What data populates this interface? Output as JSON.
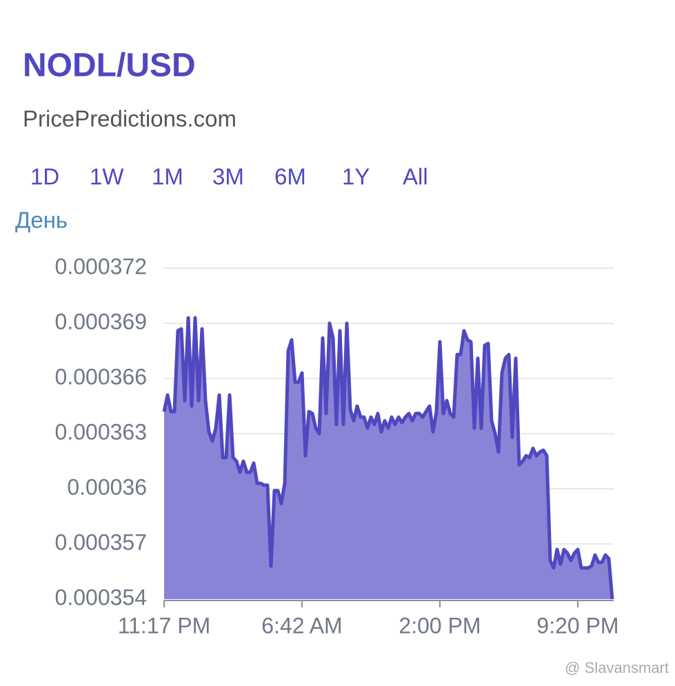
{
  "header": {
    "title": "NODL/USD",
    "subtitle": "PricePredictions.com",
    "ranges": [
      "1D",
      "1W",
      "1M",
      "3M",
      "6M",
      "1Y",
      "All"
    ],
    "period": "День"
  },
  "chart_data": {
    "type": "area",
    "color": "#4f48c0",
    "fill": "#8a84d6",
    "grid": true,
    "categories": [
      "11:17 PM",
      null,
      null,
      null,
      null,
      null,
      null,
      null,
      null,
      null,
      null,
      null,
      null,
      null,
      null,
      null,
      null,
      null,
      null,
      null,
      null,
      null,
      null,
      null,
      null,
      null,
      null,
      null,
      null,
      null,
      null,
      null,
      null,
      null,
      null,
      null,
      null,
      null,
      null,
      null,
      "6:42 AM",
      null,
      null,
      null,
      null,
      null,
      null,
      null,
      null,
      null,
      null,
      null,
      null,
      null,
      null,
      null,
      null,
      null,
      null,
      null,
      null,
      null,
      null,
      null,
      null,
      null,
      null,
      null,
      null,
      null,
      null,
      null,
      null,
      null,
      null,
      null,
      null,
      null,
      null,
      null,
      "2:00 PM",
      null,
      null,
      null,
      null,
      null,
      null,
      null,
      null,
      null,
      null,
      null,
      null,
      null,
      null,
      null,
      null,
      null,
      null,
      null,
      null,
      null,
      null,
      null,
      null,
      null,
      null,
      null,
      null,
      null,
      null,
      null,
      null,
      null,
      null,
      null,
      null,
      null,
      null,
      null,
      "9:20 PM",
      null,
      null,
      null,
      null,
      null,
      null,
      null,
      null,
      null,
      null
    ],
    "values": [
      0.0003642,
      0.0003651,
      0.0003642,
      0.0003642,
      0.0003686,
      0.0003687,
      0.0003648,
      0.0003693,
      0.0003645,
      0.0003693,
      0.0003648,
      0.0003687,
      0.0003648,
      0.0003631,
      0.0003626,
      0.0003633,
      0.0003651,
      0.0003617,
      0.0003617,
      0.0003651,
      0.0003617,
      0.0003615,
      0.0003609,
      0.0003615,
      0.0003609,
      0.0003609,
      0.0003614,
      0.0003603,
      0.0003603,
      0.0003602,
      0.0003602,
      0.0003558,
      0.0003599,
      0.0003599,
      0.0003592,
      0.0003603,
      0.0003675,
      0.0003681,
      0.0003658,
      0.0003658,
      0.0003663,
      0.0003618,
      0.0003642,
      0.0003641,
      0.0003633,
      0.000363,
      0.0003682,
      0.0003641,
      0.000369,
      0.0003682,
      0.0003635,
      0.0003686,
      0.0003635,
      0.000369,
      0.0003643,
      0.0003637,
      0.0003645,
      0.0003639,
      0.0003639,
      0.0003633,
      0.0003639,
      0.0003635,
      0.0003641,
      0.0003631,
      0.0003637,
      0.0003633,
      0.0003639,
      0.0003635,
      0.0003639,
      0.0003636,
      0.0003639,
      0.0003641,
      0.0003637,
      0.0003641,
      0.0003641,
      0.0003639,
      0.0003642,
      0.0003645,
      0.0003631,
      0.0003642,
      0.000368,
      0.0003641,
      0.0003648,
      0.0003641,
      0.0003639,
      0.0003673,
      0.0003673,
      0.0003686,
      0.0003681,
      0.000368,
      0.0003633,
      0.0003671,
      0.0003633,
      0.0003678,
      0.0003679,
      0.0003637,
      0.000363,
      0.000362,
      0.0003663,
      0.0003671,
      0.0003673,
      0.0003628,
      0.0003671,
      0.0003613,
      0.0003615,
      0.0003618,
      0.0003617,
      0.0003622,
      0.0003618,
      0.000362,
      0.0003621,
      0.0003618,
      0.0003561,
      0.0003557,
      0.0003567,
      0.0003559,
      0.0003567,
      0.0003565,
      0.0003561,
      0.0003565,
      0.0003567,
      0.0003557,
      0.0003557,
      0.0003557,
      0.0003558,
      0.0003564,
      0.000356,
      0.000356,
      0.0003564,
      0.0003562,
      0.000354
    ],
    "ylim": [
      0.000354,
      0.000372
    ],
    "yticks": [
      0.000354,
      0.000357,
      0.00036,
      0.000363,
      0.000366,
      0.000369,
      0.000372
    ]
  },
  "watermark": "@ Slavansmart"
}
